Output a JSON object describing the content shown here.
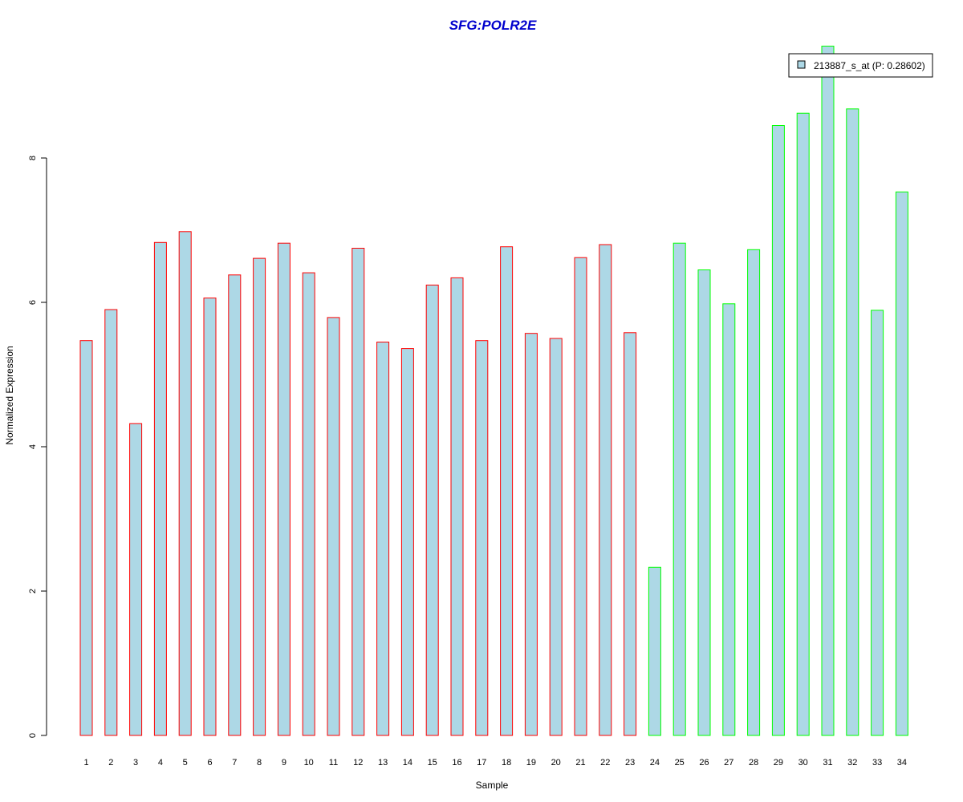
{
  "chart_data": {
    "type": "bar",
    "title": "SFG:POLR2E",
    "xlabel": "Sample",
    "ylabel": "Normalized Expression",
    "ylim": [
      0,
      9.6
    ],
    "yticks": [
      0,
      2,
      4,
      6,
      8
    ],
    "grid": false,
    "legend_position": "top-right",
    "categories": [
      "1",
      "2",
      "3",
      "4",
      "5",
      "6",
      "7",
      "8",
      "9",
      "10",
      "11",
      "12",
      "13",
      "14",
      "15",
      "16",
      "17",
      "18",
      "19",
      "20",
      "21",
      "22",
      "23",
      "24",
      "25",
      "26",
      "27",
      "28",
      "29",
      "30",
      "31",
      "32",
      "33",
      "34"
    ],
    "series": [
      {
        "name": "213887_s_at (P: 0.28602)",
        "values": [
          5.47,
          5.9,
          4.32,
          6.83,
          6.98,
          6.06,
          6.38,
          6.61,
          6.82,
          6.41,
          5.79,
          6.75,
          5.45,
          5.36,
          6.24,
          6.34,
          5.47,
          6.77,
          5.57,
          5.5,
          6.62,
          6.8,
          5.58,
          2.33,
          6.82,
          6.45,
          5.98,
          6.73,
          8.45,
          8.62,
          9.55,
          8.68,
          5.89,
          7.53
        ],
        "groups": [
          "1",
          "1",
          "1",
          "1",
          "1",
          "1",
          "1",
          "1",
          "1",
          "1",
          "1",
          "1",
          "1",
          "1",
          "1",
          "1",
          "1",
          "1",
          "1",
          "1",
          "1",
          "1",
          "1",
          "2",
          "2",
          "2",
          "2",
          "2",
          "2",
          "2",
          "2",
          "2",
          "2",
          "2"
        ]
      }
    ],
    "colors": {
      "title": "#0000cd",
      "bar_fill": "#add8e6",
      "group1_border": "#ff0000",
      "group2_border": "#00ff00",
      "axis": "#000000"
    }
  }
}
